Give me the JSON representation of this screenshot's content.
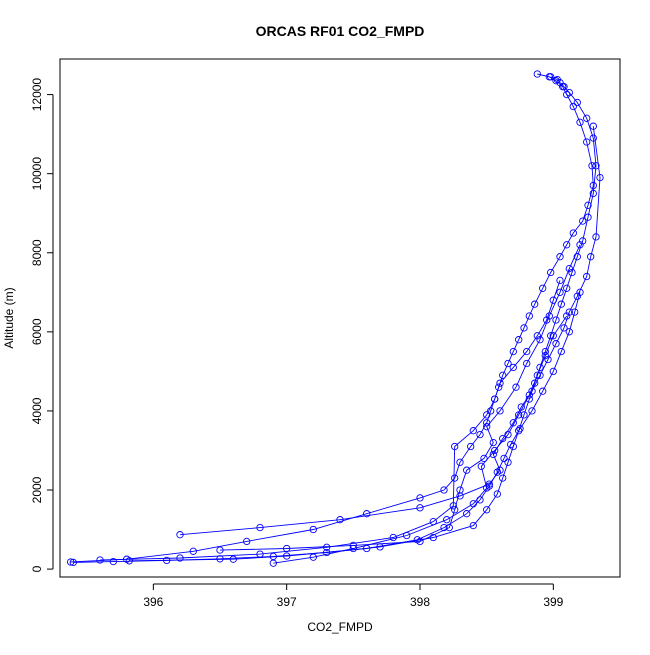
{
  "chart_data": {
    "type": "line",
    "title": "ORCAS RF01 CO2_FMPD",
    "xlabel": "CO2_FMPD",
    "ylabel": "Altitude (m)",
    "xlim": [
      395.3,
      399.5
    ],
    "ylim": [
      -200,
      12900
    ],
    "xticks": [
      396,
      397,
      398,
      399
    ],
    "xtick_labels": [
      "396",
      "397",
      "398",
      "399"
    ],
    "yticks": [
      0,
      2000,
      4000,
      6000,
      8000,
      10000,
      12000
    ],
    "ytick_labels": [
      "0",
      "2000",
      "4000",
      "6000",
      "8000",
      "10000",
      "12000"
    ],
    "grid": false,
    "marker": "open-circle",
    "series_color": "#0000ff",
    "series": [
      {
        "x": [
          398.88,
          398.97,
          399.02,
          399.07,
          399.1,
          399.15,
          399.2,
          399.25,
          399.29,
          399.3,
          399.26,
          399.22,
          399.15,
          399.1,
          399.05,
          398.98,
          398.92,
          398.86,
          398.82,
          398.78,
          398.74,
          398.7,
          398.66,
          398.62,
          398.59,
          398.56,
          398.53,
          398.5,
          398.45,
          398.38,
          398.3,
          398.26,
          398.18,
          398.0,
          397.6,
          397.2,
          396.7,
          396.3,
          395.8,
          395.38
        ],
        "y": [
          12520,
          12450,
          12350,
          12200,
          12000,
          11700,
          11300,
          10800,
          10200,
          9700,
          9200,
          8800,
          8500,
          8200,
          7900,
          7500,
          7100,
          6700,
          6400,
          6100,
          5800,
          5500,
          5200,
          4900,
          4600,
          4300,
          4000,
          3700,
          3400,
          3100,
          2700,
          2300,
          2000,
          1800,
          1400,
          1000,
          700,
          450,
          250,
          180
        ]
      },
      {
        "x": [
          395.4,
          395.7,
          396.1,
          396.5,
          396.9,
          397.3,
          397.7,
          398.1,
          398.4,
          398.5,
          398.58,
          398.62,
          398.66,
          398.7,
          398.74,
          398.78,
          398.82,
          398.86,
          398.9,
          398.94,
          398.98,
          399.02,
          399.06,
          399.1,
          399.14,
          399.18,
          399.22,
          399.26,
          399.3,
          399.32,
          399.3,
          399.25,
          399.18,
          399.12,
          399.08,
          399.05,
          399.03,
          398.98
        ],
        "y": [
          170,
          190,
          220,
          260,
          320,
          420,
          560,
          800,
          1100,
          1500,
          1900,
          2300,
          2700,
          3100,
          3500,
          3900,
          4300,
          4700,
          5100,
          5500,
          5900,
          6300,
          6700,
          7100,
          7500,
          7900,
          8300,
          8900,
          9500,
          10200,
          10900,
          11400,
          11800,
          12050,
          12200,
          12300,
          12380,
          12450
        ]
      },
      {
        "x": [
          396.2,
          396.8,
          397.4,
          398.0,
          398.3,
          398.52,
          398.6,
          398.55,
          398.62,
          398.7,
          398.76,
          398.84,
          398.9,
          398.96,
          399.02,
          399.08,
          399.12,
          399.18,
          399.25,
          399.28,
          399.32,
          399.35,
          399.3
        ],
        "y": [
          870,
          1050,
          1250,
          1550,
          1850,
          2150,
          2500,
          2900,
          3300,
          3700,
          4100,
          4500,
          4900,
          5300,
          5700,
          6100,
          6500,
          6900,
          7400,
          7900,
          8400,
          9900,
          11200
        ]
      },
      {
        "x": [
          396.5,
          397.0,
          397.5,
          398.0,
          398.22,
          398.26,
          398.3,
          398.35,
          398.48,
          398.55,
          398.5,
          398.6,
          398.72,
          398.8,
          398.9,
          398.97,
          399.05,
          399.12,
          399.2
        ],
        "y": [
          480,
          520,
          600,
          700,
          1050,
          1500,
          2000,
          2500,
          2800,
          3200,
          3600,
          4000,
          4600,
          5200,
          5800,
          6400,
          7000,
          7600,
          8200
        ]
      },
      {
        "x": [
          395.6,
          396.2,
          396.8,
          397.3,
          397.8,
          398.1,
          398.25,
          398.26,
          398.4,
          398.5,
          398.56,
          398.6,
          398.7,
          398.8,
          398.88,
          398.95,
          399.0,
          399.05
        ],
        "y": [
          230,
          280,
          380,
          550,
          800,
          1200,
          1600,
          3100,
          3500,
          3900,
          4300,
          4700,
          5100,
          5500,
          5900,
          6300,
          6800,
          7300
        ]
      },
      {
        "x": [
          395.82,
          396.6,
          397.0,
          397.6,
          397.98,
          398.18,
          398.35,
          398.45,
          398.52,
          398.58,
          398.63,
          398.68,
          398.75,
          398.84,
          398.92,
          399.0,
          399.06,
          399.12,
          399.16,
          399.2
        ],
        "y": [
          210,
          250,
          330,
          520,
          740,
          1050,
          1400,
          1750,
          2100,
          2450,
          2800,
          3150,
          3550,
          4000,
          4500,
          5000,
          5500,
          6000,
          6500,
          7000
        ]
      },
      {
        "x": [
          396.9,
          397.2,
          397.5,
          397.9,
          398.2,
          398.4,
          398.5,
          398.46,
          398.56,
          398.66,
          398.74,
          398.82,
          398.88,
          398.94,
          399.0,
          399.1
        ],
        "y": [
          150,
          300,
          520,
          850,
          1250,
          1650,
          2050,
          2600,
          3000,
          3400,
          3900,
          4400,
          4900,
          5400,
          5900,
          6400
        ]
      }
    ]
  }
}
